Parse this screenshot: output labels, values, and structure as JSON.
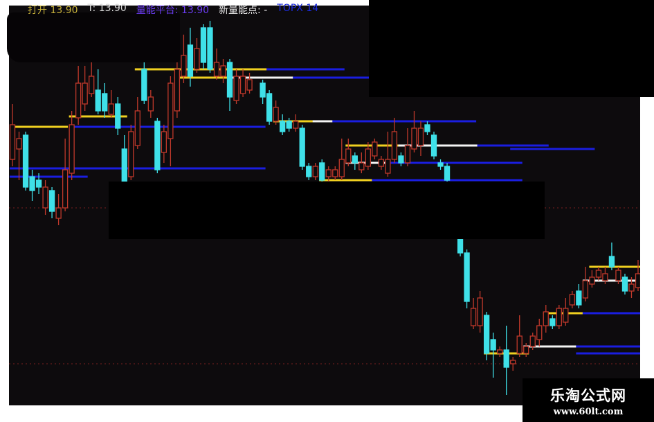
{
  "header": {
    "open_label": "打开 13.90",
    "t_label": "T: 13.90",
    "platform_label": "量能平台: 13.90",
    "new_point_label": "新量能点: -",
    "top_label": "TOPX 14"
  },
  "watermark": {
    "title": "乐淘公式网",
    "url": "www.60lt.com"
  },
  "colors": {
    "background": "#0d0b0d",
    "up": "#c0392b",
    "down": "#3fe0e8",
    "platform_yellow": "#f0d020",
    "platform_white": "#f4f4f4",
    "platform_blue": "#1a1ee0",
    "grid": "#7a1f1f"
  },
  "chart_data": {
    "type": "candlestick",
    "ylim": [
      8,
      20
    ],
    "grid_levels": [
      14,
      9.5
    ],
    "candles": [
      [
        15.4,
        17,
        15.2,
        16.4
      ],
      [
        15.7,
        16.2,
        14.8,
        16
      ],
      [
        16.1,
        16.2,
        14.5,
        14.6
      ],
      [
        14.9,
        15.1,
        14.2,
        14.5
      ],
      [
        14.8,
        15,
        14.4,
        14.6
      ],
      [
        14,
        14.8,
        13.8,
        14.6
      ],
      [
        14.5,
        14.6,
        13.7,
        13.9
      ],
      [
        13.7,
        14.4,
        13.5,
        14
      ],
      [
        14,
        16,
        13.9,
        15.1
      ],
      [
        15,
        16.8,
        14.8,
        16.4
      ],
      [
        16.6,
        18.1,
        16.4,
        17.6
      ],
      [
        17,
        18.1,
        16.8,
        17.6
      ],
      [
        17.3,
        18.3,
        17.2,
        17.8
      ],
      [
        17.4,
        18,
        16.7,
        16.8
      ],
      [
        17.3,
        17.6,
        16.6,
        16.8
      ],
      [
        16.7,
        17.4,
        16.6,
        17
      ],
      [
        17,
        17.2,
        16.1,
        16.3
      ],
      [
        15.7,
        16.1,
        14.6,
        14.7
      ],
      [
        14.9,
        16.4,
        14.8,
        16.2
      ],
      [
        15.8,
        17.2,
        15.7,
        16.8
      ],
      [
        18,
        18.2,
        17,
        17.1
      ],
      [
        16.8,
        17.4,
        16.6,
        17.2
      ],
      [
        16.5,
        16.6,
        15,
        15.1
      ],
      [
        15.6,
        16.4,
        15.3,
        16.2
      ],
      [
        16,
        17.8,
        15.2,
        17.6
      ],
      [
        16.8,
        18.6,
        16.6,
        18
      ],
      [
        17.8,
        19,
        17.6,
        18.4
      ],
      [
        18.7,
        19.2,
        17.5,
        17.8
      ],
      [
        18,
        18.9,
        17.9,
        18.6
      ],
      [
        19.2,
        19.3,
        18,
        18.2
      ],
      [
        19.2,
        19.4,
        17.9,
        18
      ],
      [
        17.8,
        18.6,
        17.7,
        18.2
      ],
      [
        17.8,
        18.3,
        17.6,
        18.1
      ],
      [
        18.2,
        18.3,
        16.8,
        17.2
      ],
      [
        17.1,
        18,
        17,
        17.8
      ],
      [
        17.3,
        18,
        17.2,
        17.8
      ],
      [
        17.4,
        17.9,
        17.3,
        17.7
      ],
      null,
      [
        17.6,
        17.7,
        17,
        17.2
      ],
      [
        17.3,
        17.4,
        16.4,
        16.5
      ],
      [
        16.5,
        17.1,
        16.4,
        16.9
      ],
      [
        16.5,
        16.7,
        16.1,
        16.2
      ],
      [
        16.5,
        16.6,
        16.2,
        16.3
      ],
      [
        16.3,
        16.7,
        16.2,
        16.5
      ],
      [
        16.3,
        16.4,
        15.1,
        15.2
      ],
      [
        15.2,
        15.3,
        14.8,
        14.9
      ],
      [
        14.9,
        15.3,
        14.8,
        15.2
      ],
      [
        15.3,
        15.4,
        14.7,
        14.8
      ],
      [
        14.9,
        15.2,
        14.7,
        15.1
      ],
      [
        14.9,
        15.2,
        14.8,
        15.1
      ],
      [
        14.9,
        16,
        14.8,
        15.4
      ],
      [
        15.3,
        16,
        15.2,
        15.7
      ],
      [
        15.5,
        15.6,
        15.1,
        15.3
      ],
      [
        15.1,
        15.6,
        15,
        15.3
      ],
      [
        15.2,
        15.9,
        15.1,
        15.7
      ],
      [
        15.5,
        16,
        15.4,
        15.9
      ],
      [
        15.2,
        15.5,
        15.1,
        15.4
      ],
      [
        15,
        16.2,
        14.9,
        15.4
      ],
      [
        15.4,
        16.6,
        15.3,
        16.2
      ],
      [
        15.5,
        15.6,
        15.2,
        15.3
      ],
      [
        15.3,
        16.3,
        15.2,
        15.8
      ],
      [
        15.7,
        16.8,
        15.6,
        16.3
      ],
      [
        15.8,
        16.5,
        15.5,
        16.3
      ],
      [
        16.4,
        16.5,
        16.1,
        16.2
      ],
      [
        16.1,
        16.2,
        15.4,
        15.5
      ],
      [
        15.3,
        15.4,
        15.1,
        15.2
      ],
      [
        15.2,
        15.3,
        14.7,
        14.8
      ],
      null,
      [
        13.1,
        13.2,
        12.6,
        12.7
      ],
      [
        12.7,
        12.8,
        11.1,
        11.3
      ],
      [
        10.6,
        11.4,
        10.5,
        11.1
      ],
      [
        10.6,
        11.6,
        10.4,
        11.4
      ],
      [
        10.9,
        11,
        9.6,
        9.8
      ],
      [
        10.2,
        10.4,
        9.1,
        9.9
      ],
      [
        9.8,
        10,
        9.7,
        9.9
      ],
      [
        9.9,
        10.6,
        8.6,
        9.4
      ],
      [
        9.5,
        9.7,
        9.3,
        9.6
      ],
      [
        9.8,
        10.9,
        9.7,
        10.3
      ],
      [
        9.8,
        10.1,
        9.7,
        10
      ],
      [
        10,
        10.4,
        9.9,
        10.3
      ],
      [
        10.2,
        10.8,
        10,
        10.6
      ],
      [
        10.6,
        11.2,
        10.4,
        11
      ],
      [
        10.8,
        10.9,
        10.5,
        10.6
      ],
      [
        10.6,
        11.2,
        10.5,
        11.1
      ],
      [
        10.7,
        11.4,
        10.6,
        11.1
      ],
      [
        11.2,
        11.6,
        11.1,
        11.5
      ],
      [
        11.6,
        11.8,
        11.1,
        11.2
      ],
      [
        11.4,
        12.3,
        11.3,
        11.9
      ],
      [
        11.8,
        12.2,
        11.7,
        12
      ],
      [
        12,
        12.3,
        11.9,
        12.2
      ],
      [
        11.9,
        12.3,
        11.8,
        12.1
      ],
      [
        12.6,
        13,
        12.2,
        12.3
      ],
      [
        11.9,
        12.3,
        11.8,
        12.2
      ],
      [
        12,
        12.1,
        11.5,
        11.6
      ],
      [
        11.6,
        12,
        11.4,
        11.8
      ],
      [
        11.7,
        12.5,
        11.6,
        12.1
      ]
    ],
    "platforms": [
      {
        "price": 18.6,
        "from": 0,
        "to": 3,
        "color": "blue"
      },
      {
        "price": 16.34,
        "from": 0,
        "to": 8,
        "color": "yellow"
      },
      {
        "price": 16.64,
        "from": 9,
        "to": 17,
        "color": "yellow"
      },
      {
        "price": 16.34,
        "from": 9,
        "to": 38,
        "color": "blue"
      },
      {
        "price": 15.14,
        "from": 0,
        "to": 38,
        "color": "blue"
      },
      {
        "price": 14.9,
        "from": 0,
        "to": 11,
        "color": "blue"
      },
      {
        "price": 18,
        "from": 19,
        "to": 39,
        "color": "yellow"
      },
      {
        "price": 18,
        "from": 39,
        "to": 50,
        "color": "blue"
      },
      {
        "price": 17.76,
        "from": 25,
        "to": 33,
        "color": "yellow"
      },
      {
        "price": 17.76,
        "from": 33,
        "to": 43,
        "color": "white"
      },
      {
        "price": 17.76,
        "from": 43,
        "to": 54,
        "color": "blue"
      },
      {
        "price": 16.5,
        "from": 40,
        "to": 46,
        "color": "yellow"
      },
      {
        "price": 16.5,
        "from": 46,
        "to": 49,
        "color": "white"
      },
      {
        "price": 16.5,
        "from": 49,
        "to": 70,
        "color": "blue"
      },
      {
        "price": 15.8,
        "from": 51,
        "to": 59,
        "color": "yellow"
      },
      {
        "price": 15.8,
        "from": 59,
        "to": 71,
        "color": "white"
      },
      {
        "price": 15.8,
        "from": 71,
        "to": 81,
        "color": "blue"
      },
      {
        "price": 15.7,
        "from": 76,
        "to": 88,
        "color": "blue"
      },
      {
        "price": 15.3,
        "from": 51,
        "to": 57,
        "color": "white"
      },
      {
        "price": 15.3,
        "from": 57,
        "to": 77,
        "color": "blue"
      },
      {
        "price": 14.8,
        "from": 47,
        "to": 55,
        "color": "yellow"
      },
      {
        "price": 14.8,
        "from": 55,
        "to": 77,
        "color": "blue"
      },
      {
        "price": 9.8,
        "from": 72,
        "to": 78,
        "color": "yellow"
      },
      {
        "price": 10,
        "from": 78,
        "to": 86,
        "color": "white"
      },
      {
        "price": 10,
        "from": 86,
        "to": 95,
        "color": "blue"
      },
      {
        "price": 9.8,
        "from": 86,
        "to": 95,
        "color": "blue"
      },
      {
        "price": 10.96,
        "from": 81,
        "to": 87,
        "color": "yellow"
      },
      {
        "price": 10.96,
        "from": 87,
        "to": 95,
        "color": "blue"
      },
      {
        "price": 12.3,
        "from": 88,
        "to": 95,
        "color": "yellow"
      },
      {
        "price": 11.9,
        "from": 87,
        "to": 95,
        "color": "white"
      }
    ]
  }
}
